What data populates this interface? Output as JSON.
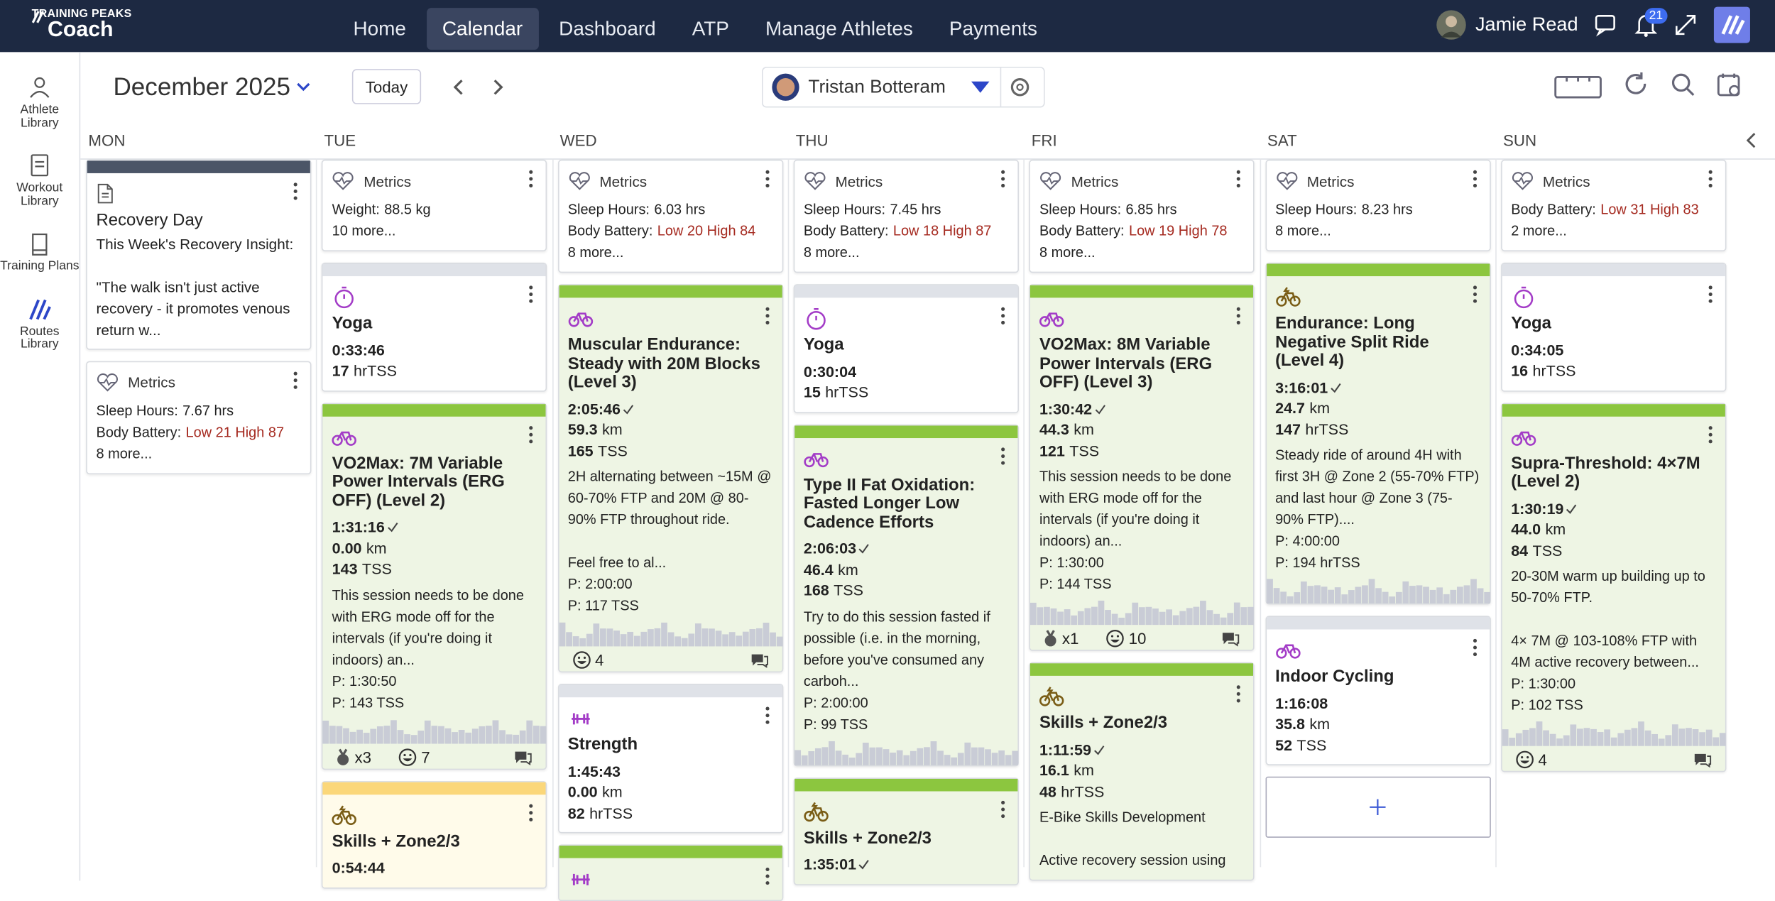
{
  "nav": {
    "brand_top": "TRAINING PEAKS",
    "brand": "Coach",
    "items": [
      "Home",
      "Calendar",
      "Dashboard",
      "ATP",
      "Manage Athletes",
      "Payments"
    ],
    "user": "Jamie Read",
    "notifications": "21"
  },
  "sidebar": [
    "Athlete Library",
    "Workout Library",
    "Training Plans",
    "Routes Library"
  ],
  "toolbar": {
    "month": "December 2025",
    "today": "Today",
    "athlete": "Tristan Botteram"
  },
  "days": [
    "MON",
    "TUE",
    "WED",
    "THU",
    "FRI",
    "SAT",
    "SUN"
  ],
  "columns": [
    [
      {
        "kind": "note",
        "color": "dark",
        "title": "Recovery Day",
        "text": "This Week's Recovery Insight:\n\n\"The walk isn't just active recovery - it promotes venous return w..."
      },
      {
        "kind": "metrics",
        "title": "Metrics",
        "lines": [
          {
            "label": "Sleep Hours:",
            "value": "7.67 hrs"
          },
          {
            "label": "Body Battery:",
            "value": "Low 21 High 87",
            "alert": true
          }
        ],
        "more": "8 more..."
      }
    ],
    [
      {
        "kind": "metrics",
        "title": "Metrics",
        "lines": [
          {
            "label": "Weight:",
            "value": "88.5 kg"
          }
        ],
        "more": "10 more..."
      },
      {
        "kind": "workout",
        "color": "grey",
        "sport": "yoga",
        "title": "Yoga",
        "duration": "0:33:46",
        "load": "17",
        "load_unit": "hrTSS"
      },
      {
        "kind": "workout",
        "color": "green",
        "sport": "bike",
        "title": "VO2Max: 7M Variable Power Intervals (ERG OFF) (Level 2)",
        "duration": "1:31:16",
        "distance": "0.00",
        "distance_unit": "km",
        "load": "143",
        "load_unit": "TSS",
        "desc": "This session needs to be done with ERG mode off for the intervals (if you're doing it indoors) an...",
        "planned": [
          "P: 1:30:50",
          "P: 143 TSS"
        ],
        "graph": true,
        "footer": {
          "medals": "x3",
          "likes": "7"
        }
      },
      {
        "kind": "workout",
        "color": "yellow",
        "sport": "ebike",
        "title": "Skills + Zone2/3",
        "duration": "0:54:44"
      }
    ],
    [
      {
        "kind": "metrics",
        "title": "Metrics",
        "lines": [
          {
            "label": "Sleep Hours:",
            "value": "6.03 hrs"
          },
          {
            "label": "Body Battery:",
            "value": "Low 20 High 84",
            "alert": true
          }
        ],
        "more": "8 more..."
      },
      {
        "kind": "workout",
        "color": "green",
        "sport": "bike",
        "title": "Muscular Endurance: Steady with 20M Blocks (Level 3)",
        "duration": "2:05:46",
        "distance": "59.3",
        "distance_unit": "km",
        "load": "165",
        "load_unit": "TSS",
        "desc": "2H alternating between ~15M @ 60-70% FTP and 20M @ 80-90% FTP throughout ride.\n\nFeel free to al...",
        "planned": [
          "P: 2:00:00",
          "P: 117 TSS"
        ],
        "graph": true,
        "footer": {
          "likes": "4"
        }
      },
      {
        "kind": "workout",
        "color": "grey",
        "sport": "strength",
        "title": "Strength",
        "duration": "1:45:43",
        "distance": "0.00",
        "distance_unit": "km",
        "load": "82",
        "load_unit": "hrTSS"
      },
      {
        "kind": "workout",
        "color": "green",
        "sport": "strength"
      }
    ],
    [
      {
        "kind": "metrics",
        "title": "Metrics",
        "lines": [
          {
            "label": "Sleep Hours:",
            "value": "7.45 hrs"
          },
          {
            "label": "Body Battery:",
            "value": "Low 18 High 87",
            "alert": true
          }
        ],
        "more": "8 more..."
      },
      {
        "kind": "workout",
        "color": "grey",
        "sport": "yoga",
        "title": "Yoga",
        "duration": "0:30:04",
        "load": "15",
        "load_unit": "hrTSS"
      },
      {
        "kind": "workout",
        "color": "green",
        "sport": "bike",
        "title": "Type II Fat Oxidation: Fasted Longer Low Cadence Efforts",
        "duration": "2:06:03",
        "distance": "46.4",
        "distance_unit": "km",
        "load": "168",
        "load_unit": "TSS",
        "desc": "Try to do this session fasted if possible (i.e. in the morning, before you've consumed any carboh...",
        "planned": [
          "P: 2:00:00",
          "P: 99 TSS"
        ],
        "graph": true
      },
      {
        "kind": "workout",
        "color": "green",
        "sport": "ebike",
        "title": "Skills + Zone2/3",
        "duration": "1:35:01"
      }
    ],
    [
      {
        "kind": "metrics",
        "title": "Metrics",
        "lines": [
          {
            "label": "Sleep Hours:",
            "value": "6.85 hrs"
          },
          {
            "label": "Body Battery:",
            "value": "Low 19 High 78",
            "alert": true
          }
        ],
        "more": "8 more..."
      },
      {
        "kind": "workout",
        "color": "green",
        "sport": "bike",
        "title": "VO2Max: 8M Variable Power Intervals (ERG OFF) (Level 3)",
        "duration": "1:30:42",
        "distance": "44.3",
        "distance_unit": "km",
        "load": "121",
        "load_unit": "TSS",
        "desc": "This session needs to be done with ERG mode off for the intervals (if you're doing it indoors) an...",
        "planned": [
          "P: 1:30:00",
          "P: 144 TSS"
        ],
        "graph": true,
        "footer": {
          "medals": "x1",
          "likes": "10"
        }
      },
      {
        "kind": "workout",
        "color": "green",
        "sport": "ebike",
        "title": "Skills + Zone2/3",
        "duration": "1:11:59",
        "distance": "16.1",
        "distance_unit": "km",
        "load": "48",
        "load_unit": "hrTSS",
        "desc": "E-Bike Skills Development\n\nActive recovery session using"
      }
    ],
    [
      {
        "kind": "metrics",
        "title": "Metrics",
        "lines": [
          {
            "label": "Sleep Hours:",
            "value": "8.23 hrs"
          }
        ],
        "more": "8 more..."
      },
      {
        "kind": "workout",
        "color": "green",
        "sport": "ebike",
        "title": "Endurance: Long Negative Split Ride (Level 4)",
        "duration": "3:16:01",
        "distance": "24.7",
        "distance_unit": "km",
        "load": "147",
        "load_unit": "hrTSS",
        "desc": "Steady ride of around 4H with first 3H @ Zone 2 (55-70% FTP) and last hour @ Zone 3 (75-90% FTP)....",
        "planned": [
          "P: 4:00:00",
          "P: 194 hrTSS"
        ],
        "graph": true
      },
      {
        "kind": "workout",
        "color": "grey",
        "sport": "bike",
        "title": "Indoor Cycling",
        "duration": "1:16:08",
        "distance": "35.8",
        "distance_unit": "km",
        "load": "52",
        "load_unit": "TSS"
      },
      {
        "kind": "add"
      }
    ],
    [
      {
        "kind": "metrics",
        "title": "Metrics",
        "lines": [
          {
            "label": "Body Battery:",
            "value": "Low 31 High 83",
            "alert": true
          }
        ],
        "more": "2 more..."
      },
      {
        "kind": "workout",
        "color": "grey",
        "sport": "yoga",
        "title": "Yoga",
        "duration": "0:34:05",
        "load": "16",
        "load_unit": "hrTSS"
      },
      {
        "kind": "workout",
        "color": "green",
        "sport": "bike",
        "title": "Supra-Threshold: 4×7M (Level 2)",
        "duration": "1:30:19",
        "distance": "44.0",
        "distance_unit": "km",
        "load": "84",
        "load_unit": "TSS",
        "desc": "20-30M warm up building up to 50-70% FTP.\n\n4× 7M @ 103-108% FTP with 4M active recovery between...",
        "planned": [
          "P: 1:30:00",
          "P: 102 TSS"
        ],
        "graph": true,
        "footer": {
          "likes": "4"
        }
      }
    ]
  ]
}
